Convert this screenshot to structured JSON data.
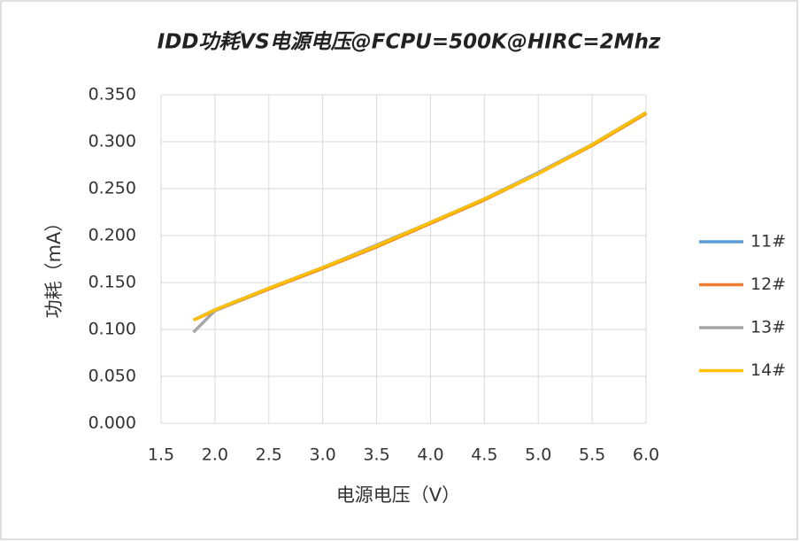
{
  "chart_data": {
    "type": "line",
    "title": "IDD功耗VS电源电压@FCPU=500K@HIRC=2Mhz",
    "x_label": "电源电压（V）",
    "y_label": "功耗（mA）",
    "x": [
      1.8,
      2.0,
      2.5,
      3.0,
      3.5,
      4.0,
      4.5,
      5.0,
      5.5,
      6.0
    ],
    "series": [
      {
        "name": "11#",
        "color": "#5b9bd5",
        "values": [
          0.11,
          0.121,
          0.144,
          0.166,
          0.189,
          0.214,
          0.239,
          0.267,
          0.297,
          0.331
        ]
      },
      {
        "name": "12#",
        "color": "#ed7d31",
        "values": [
          0.11,
          0.12,
          0.143,
          0.165,
          0.188,
          0.213,
          0.238,
          0.266,
          0.296,
          0.33
        ]
      },
      {
        "name": "13#",
        "color": "#a5a5a5",
        "values": [
          0.097,
          0.12,
          0.144,
          0.166,
          0.19,
          0.214,
          0.239,
          0.267,
          0.297,
          0.331
        ]
      },
      {
        "name": "14#",
        "color": "#ffc000",
        "values": [
          0.11,
          0.121,
          0.144,
          0.166,
          0.189,
          0.214,
          0.239,
          0.266,
          0.297,
          0.331
        ]
      }
    ],
    "xlim": [
      1.5,
      6.0
    ],
    "xticks": [
      1.5,
      {
        "value": 2,
        "label": "2.0"
      },
      2.5,
      {
        "value": 3,
        "label": "3.0"
      },
      3.5,
      {
        "value": 4,
        "label": "4.0"
      },
      4.5,
      {
        "value": 5,
        "label": "5.0"
      },
      5.5,
      {
        "value": 6,
        "label": "6.0"
      }
    ],
    "ylim": [
      0,
      0.35
    ],
    "yticks": [
      {
        "value": 0,
        "label": "0.000"
      },
      {
        "value": 0.05,
        "label": "0.050"
      },
      {
        "value": 0.1,
        "label": "0.100"
      },
      {
        "value": 0.15,
        "label": "0.150"
      },
      {
        "value": 0.2,
        "label": "0.200"
      },
      {
        "value": 0.25,
        "label": "0.250"
      },
      {
        "value": 0.3,
        "label": "0.300"
      },
      {
        "value": 0.35,
        "label": "0.350"
      }
    ],
    "grid": true,
    "legend": "right"
  }
}
